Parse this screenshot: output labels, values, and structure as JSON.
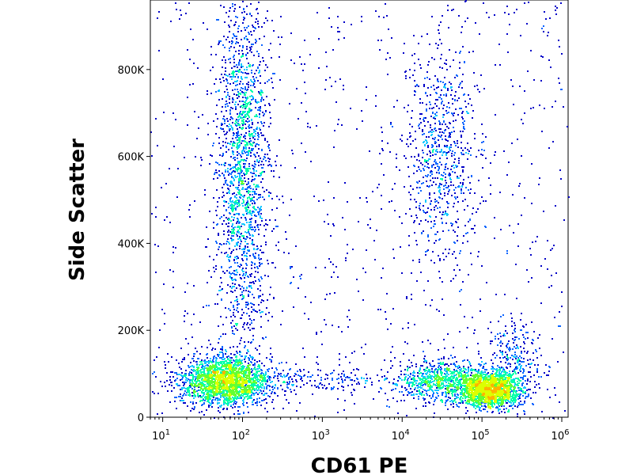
{
  "chart_data": {
    "type": "scatter",
    "style": "density-dot-plot",
    "xlabel": "CD61 PE",
    "ylabel": "Side Scatter",
    "x_scale": "log",
    "x_range": [
      7,
      1200000
    ],
    "y_range": [
      0,
      960000
    ],
    "x_ticks": [
      {
        "value": 10,
        "base": "10",
        "exp": "1"
      },
      {
        "value": 100,
        "base": "10",
        "exp": "2"
      },
      {
        "value": 1000,
        "base": "10",
        "exp": "3"
      },
      {
        "value": 10000,
        "base": "10",
        "exp": "4"
      },
      {
        "value": 100000,
        "base": "10",
        "exp": "5"
      },
      {
        "value": 1000000,
        "base": "10",
        "exp": "6"
      }
    ],
    "y_ticks": [
      {
        "value": 0,
        "label": "0"
      },
      {
        "value": 200000,
        "label": "200K"
      },
      {
        "value": 400000,
        "label": "400K"
      },
      {
        "value": 600000,
        "label": "600K"
      },
      {
        "value": 800000,
        "label": "800K"
      }
    ],
    "grid": false,
    "legend": "none",
    "density_colors": [
      "#0000c8",
      "#0a64ff",
      "#14c8ff",
      "#00ffaa",
      "#64ff32",
      "#dcff00",
      "#ffb400",
      "#ff5000",
      "#e61e1e"
    ],
    "populations": [
      {
        "x_center": 60,
        "y_center": 85000,
        "x_spread_decades": 0.28,
        "y_spread": 28000,
        "density": "very high"
      },
      {
        "x_center": 100,
        "y_center": 580000,
        "x_spread_decades": 0.16,
        "y_spread": 200000,
        "density": "high"
      },
      {
        "x_center": 30000,
        "y_center": 600000,
        "x_spread_decades": 0.22,
        "y_spread": 120000,
        "density": "medium"
      },
      {
        "x_center": 30000,
        "y_center": 85000,
        "x_spread_decades": 0.25,
        "y_spread": 25000,
        "density": "medium"
      },
      {
        "x_center": 120000,
        "y_center": 65000,
        "x_spread_decades": 0.2,
        "y_spread": 20000,
        "density": "high"
      },
      {
        "x_center": 250000,
        "y_center": 140000,
        "x_spread_decades": 0.15,
        "y_spread": 40000,
        "density": "low"
      },
      {
        "x_center": 1000,
        "y_center": 85000,
        "x_spread_decades": 0.9,
        "y_spread": 15000,
        "density": "low"
      },
      {
        "x_center": 1000,
        "y_center": 400000,
        "x_spread_decades": 1.4,
        "y_spread": 300000,
        "density": "sparse background"
      }
    ]
  }
}
